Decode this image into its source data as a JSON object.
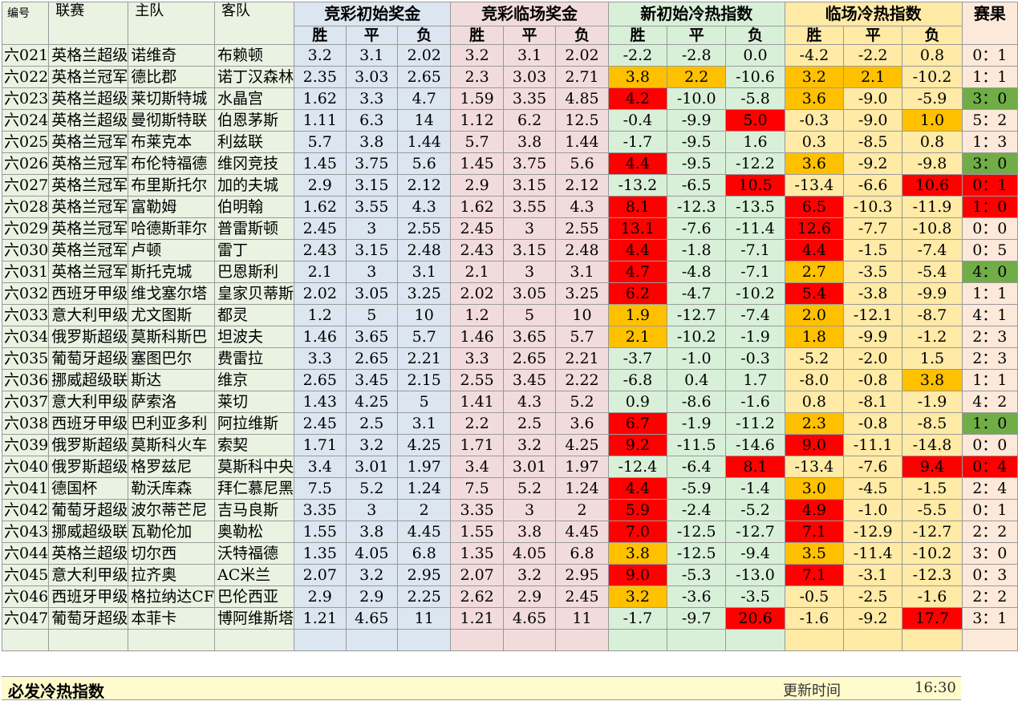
{
  "headers": {
    "id": "编号",
    "league": "联赛",
    "home": "主队",
    "away": "客队",
    "g1": "竞彩初始奖金",
    "g2": "竞彩临场奖金",
    "g3": "新初始冷热指数",
    "g4": "临场冷热指数",
    "result": "赛果",
    "win": "胜",
    "draw": "平",
    "lose": "负"
  },
  "highlight_colors": {
    "red": "#ff0000",
    "orange": "#ffc000",
    "green": "#70ad47"
  },
  "rows": [
    {
      "id": "六021",
      "league": "英格兰超级",
      "home": "诺维奇",
      "away": "布赖顿",
      "o": [
        "3.2",
        "3.1",
        "2.02"
      ],
      "c": [
        "3.2",
        "3.1",
        "2.02"
      ],
      "ni": [
        "-2.2",
        "-2.8",
        "0.0"
      ],
      "li": [
        "-4.2",
        "-2.2",
        "0.8"
      ],
      "result": "0：1",
      "nh": [
        "",
        "",
        ""
      ],
      "lh": [
        "",
        "",
        ""
      ],
      "rh": ""
    },
    {
      "id": "六022",
      "league": "英格兰冠军",
      "home": "德比郡",
      "away": "诺丁汉森林",
      "o": [
        "2.35",
        "3.03",
        "2.65"
      ],
      "c": [
        "2.3",
        "3.03",
        "2.71"
      ],
      "ni": [
        "3.8",
        "2.2",
        "-10.6"
      ],
      "li": [
        "3.2",
        "2.1",
        "-10.2"
      ],
      "result": "1：1",
      "nh": [
        "org",
        "org",
        ""
      ],
      "lh": [
        "org",
        "org",
        ""
      ],
      "rh": ""
    },
    {
      "id": "六023",
      "league": "英格兰超级",
      "home": "莱切斯特城",
      "away": "水晶宫",
      "o": [
        "1.62",
        "3.3",
        "4.7"
      ],
      "c": [
        "1.59",
        "3.35",
        "4.85"
      ],
      "ni": [
        "4.2",
        "-10.0",
        "-5.8"
      ],
      "li": [
        "3.6",
        "-9.0",
        "-5.9"
      ],
      "result": "3：0",
      "nh": [
        "red",
        "",
        ""
      ],
      "lh": [
        "org",
        "",
        ""
      ],
      "rh": "grn"
    },
    {
      "id": "六024",
      "league": "英格兰超级",
      "home": "曼彻斯特联",
      "away": "伯恩茅斯",
      "o": [
        "1.11",
        "6.3",
        "14"
      ],
      "c": [
        "1.12",
        "6.2",
        "12.5"
      ],
      "ni": [
        "-0.4",
        "-9.9",
        "5.0"
      ],
      "li": [
        "-0.3",
        "-9.0",
        "1.0"
      ],
      "result": "5：2",
      "nh": [
        "",
        "",
        "red"
      ],
      "lh": [
        "",
        "",
        "org"
      ],
      "rh": ""
    },
    {
      "id": "六025",
      "league": "英格兰冠军",
      "home": "布莱克本",
      "away": "利兹联",
      "o": [
        "5.7",
        "3.8",
        "1.44"
      ],
      "c": [
        "5.7",
        "3.8",
        "1.44"
      ],
      "ni": [
        "-1.7",
        "-9.5",
        "1.6"
      ],
      "li": [
        "0.3",
        "-8.5",
        "0.8"
      ],
      "result": "1：3",
      "nh": [
        "",
        "",
        ""
      ],
      "lh": [
        "",
        "",
        ""
      ],
      "rh": ""
    },
    {
      "id": "六026",
      "league": "英格兰冠军",
      "home": "布伦特福德",
      "away": "维冈竞技",
      "o": [
        "1.45",
        "3.75",
        "5.6"
      ],
      "c": [
        "1.45",
        "3.75",
        "5.6"
      ],
      "ni": [
        "4.4",
        "-9.5",
        "-12.2"
      ],
      "li": [
        "3.6",
        "-9.2",
        "-9.8"
      ],
      "result": "3：0",
      "nh": [
        "red",
        "",
        ""
      ],
      "lh": [
        "org",
        "",
        ""
      ],
      "rh": "grn"
    },
    {
      "id": "六027",
      "league": "英格兰冠军",
      "home": "布里斯托尔",
      "away": "加的夫城",
      "o": [
        "2.9",
        "3.15",
        "2.12"
      ],
      "c": [
        "2.9",
        "3.15",
        "2.12"
      ],
      "ni": [
        "-13.2",
        "-6.5",
        "10.5"
      ],
      "li": [
        "-13.4",
        "-6.6",
        "10.6"
      ],
      "result": "0：1",
      "nh": [
        "",
        "",
        "red"
      ],
      "lh": [
        "",
        "",
        "red"
      ],
      "rh": "red"
    },
    {
      "id": "六028",
      "league": "英格兰冠军",
      "home": "富勒姆",
      "away": "伯明翰",
      "o": [
        "1.62",
        "3.55",
        "4.3"
      ],
      "c": [
        "1.62",
        "3.55",
        "4.3"
      ],
      "ni": [
        "8.1",
        "-12.3",
        "-13.5"
      ],
      "li": [
        "6.5",
        "-10.3",
        "-11.9"
      ],
      "result": "1：0",
      "nh": [
        "red",
        "",
        ""
      ],
      "lh": [
        "red",
        "",
        ""
      ],
      "rh": "red"
    },
    {
      "id": "六029",
      "league": "英格兰冠军",
      "home": "哈德斯菲尔",
      "away": "普雷斯顿",
      "o": [
        "2.45",
        "3",
        "2.55"
      ],
      "c": [
        "2.45",
        "3",
        "2.55"
      ],
      "ni": [
        "13.1",
        "-7.6",
        "-11.4"
      ],
      "li": [
        "12.6",
        "-7.7",
        "-10.8"
      ],
      "result": "0：0",
      "nh": [
        "red",
        "",
        ""
      ],
      "lh": [
        "red",
        "",
        ""
      ],
      "rh": ""
    },
    {
      "id": "六030",
      "league": "英格兰冠军",
      "home": "卢顿",
      "away": "雷丁",
      "o": [
        "2.43",
        "3.15",
        "2.48"
      ],
      "c": [
        "2.43",
        "3.15",
        "2.48"
      ],
      "ni": [
        "4.4",
        "-1.8",
        "-7.1"
      ],
      "li": [
        "4.4",
        "-1.5",
        "-7.4"
      ],
      "result": "0：5",
      "nh": [
        "red",
        "",
        ""
      ],
      "lh": [
        "red",
        "",
        ""
      ],
      "rh": ""
    },
    {
      "id": "六031",
      "league": "英格兰冠军",
      "home": "斯托克城",
      "away": "巴恩斯利",
      "o": [
        "2.1",
        "3",
        "3.1"
      ],
      "c": [
        "2.1",
        "3",
        "3.1"
      ],
      "ni": [
        "4.7",
        "-4.8",
        "-7.1"
      ],
      "li": [
        "2.7",
        "-3.5",
        "-5.4"
      ],
      "result": "4：0",
      "nh": [
        "red",
        "",
        ""
      ],
      "lh": [
        "org",
        "",
        ""
      ],
      "rh": "grn"
    },
    {
      "id": "六032",
      "league": "西班牙甲级",
      "home": "维戈塞尔塔",
      "away": "皇家贝蒂斯",
      "o": [
        "2.02",
        "3.05",
        "3.25"
      ],
      "c": [
        "2.02",
        "3.05",
        "3.25"
      ],
      "ni": [
        "6.2",
        "-4.7",
        "-10.2"
      ],
      "li": [
        "5.4",
        "-3.8",
        "-9.9"
      ],
      "result": "1：1",
      "nh": [
        "red",
        "",
        ""
      ],
      "lh": [
        "red",
        "",
        ""
      ],
      "rh": ""
    },
    {
      "id": "六033",
      "league": "意大利甲级",
      "home": "尤文图斯",
      "away": "都灵",
      "o": [
        "1.2",
        "5",
        "10"
      ],
      "c": [
        "1.2",
        "5",
        "10"
      ],
      "ni": [
        "1.9",
        "-12.7",
        "-7.4"
      ],
      "li": [
        "2.0",
        "-12.1",
        "-8.7"
      ],
      "result": "4：1",
      "nh": [
        "org",
        "",
        ""
      ],
      "lh": [
        "org",
        "",
        ""
      ],
      "rh": ""
    },
    {
      "id": "六034",
      "league": "俄罗斯超级",
      "home": "莫斯科斯巴",
      "away": "坦波夫",
      "o": [
        "1.46",
        "3.65",
        "5.7"
      ],
      "c": [
        "1.46",
        "3.65",
        "5.7"
      ],
      "ni": [
        "2.1",
        "-10.2",
        "-1.9"
      ],
      "li": [
        "1.8",
        "-9.9",
        "-1.2"
      ],
      "result": "2：3",
      "nh": [
        "org",
        "",
        ""
      ],
      "lh": [
        "org",
        "",
        ""
      ],
      "rh": ""
    },
    {
      "id": "六035",
      "league": "葡萄牙超级",
      "home": "塞图巴尔",
      "away": "费雷拉",
      "o": [
        "3.3",
        "2.65",
        "2.21"
      ],
      "c": [
        "3.3",
        "2.65",
        "2.21"
      ],
      "ni": [
        "-3.7",
        "-1.0",
        "-0.3"
      ],
      "li": [
        "-5.2",
        "-2.0",
        "1.5"
      ],
      "result": "2：3",
      "nh": [
        "",
        "",
        ""
      ],
      "lh": [
        "",
        "",
        ""
      ],
      "rh": ""
    },
    {
      "id": "六036",
      "league": "挪威超级联",
      "home": "斯达",
      "away": "维京",
      "o": [
        "2.65",
        "3.45",
        "2.15"
      ],
      "c": [
        "2.55",
        "3.45",
        "2.22"
      ],
      "ni": [
        "-6.8",
        "0.4",
        "1.7"
      ],
      "li": [
        "-8.0",
        "-0.8",
        "3.8"
      ],
      "result": "1：1",
      "nh": [
        "",
        "",
        ""
      ],
      "lh": [
        "",
        "",
        "org"
      ],
      "rh": ""
    },
    {
      "id": "六037",
      "league": "意大利甲级",
      "home": "萨索洛",
      "away": "莱切",
      "o": [
        "1.43",
        "4.25",
        "5"
      ],
      "c": [
        "1.41",
        "4.3",
        "5.2"
      ],
      "ni": [
        "0.9",
        "-8.6",
        "-1.6"
      ],
      "li": [
        "0.8",
        "-8.1",
        "-1.9"
      ],
      "result": "4：2",
      "nh": [
        "",
        "",
        ""
      ],
      "lh": [
        "",
        "",
        ""
      ],
      "rh": ""
    },
    {
      "id": "六038",
      "league": "西班牙甲级",
      "home": "巴利亚多利",
      "away": "阿拉维斯",
      "o": [
        "2.45",
        "2.5",
        "3.1"
      ],
      "c": [
        "2.2",
        "2.5",
        "3.6"
      ],
      "ni": [
        "6.7",
        "-1.9",
        "-11.2"
      ],
      "li": [
        "2.3",
        "-0.8",
        "-8.5"
      ],
      "result": "1：0",
      "nh": [
        "red",
        "",
        ""
      ],
      "lh": [
        "org",
        "",
        ""
      ],
      "rh": "grn"
    },
    {
      "id": "六039",
      "league": "俄罗斯超级",
      "home": "莫斯科火车",
      "away": "索契",
      "o": [
        "1.71",
        "3.2",
        "4.25"
      ],
      "c": [
        "1.71",
        "3.2",
        "4.25"
      ],
      "ni": [
        "9.2",
        "-11.5",
        "-14.6"
      ],
      "li": [
        "9.0",
        "-11.1",
        "-14.8"
      ],
      "result": "0：0",
      "nh": [
        "red",
        "",
        ""
      ],
      "lh": [
        "red",
        "",
        ""
      ],
      "rh": ""
    },
    {
      "id": "六040",
      "league": "俄罗斯超级",
      "home": "格罗兹尼",
      "away": "莫斯科中央",
      "o": [
        "3.4",
        "3.01",
        "1.97"
      ],
      "c": [
        "3.4",
        "3.01",
        "1.97"
      ],
      "ni": [
        "-12.4",
        "-6.4",
        "8.1"
      ],
      "li": [
        "-13.4",
        "-7.6",
        "9.4"
      ],
      "result": "0：4",
      "nh": [
        "",
        "",
        "red"
      ],
      "lh": [
        "",
        "",
        "red"
      ],
      "rh": "red"
    },
    {
      "id": "六041",
      "league": "德国杯",
      "home": "勒沃库森",
      "away": "拜仁慕尼黑",
      "o": [
        "7.5",
        "5.2",
        "1.24"
      ],
      "c": [
        "7.5",
        "5.2",
        "1.24"
      ],
      "ni": [
        "4.4",
        "-5.9",
        "-1.4"
      ],
      "li": [
        "3.0",
        "-4.5",
        "-1.5"
      ],
      "result": "2：4",
      "nh": [
        "red",
        "",
        ""
      ],
      "lh": [
        "org",
        "",
        ""
      ],
      "rh": ""
    },
    {
      "id": "六042",
      "league": "葡萄牙超级",
      "home": "波尔蒂芒尼",
      "away": "吉马良斯",
      "o": [
        "3.35",
        "3",
        "2"
      ],
      "c": [
        "3.35",
        "3",
        "2"
      ],
      "ni": [
        "5.9",
        "-2.4",
        "-5.2"
      ],
      "li": [
        "4.9",
        "-1.0",
        "-5.5"
      ],
      "result": "0：1",
      "nh": [
        "red",
        "",
        ""
      ],
      "lh": [
        "red",
        "",
        ""
      ],
      "rh": ""
    },
    {
      "id": "六043",
      "league": "挪威超级联",
      "home": "瓦勒伦加",
      "away": "奥勒松",
      "o": [
        "1.55",
        "3.8",
        "4.45"
      ],
      "c": [
        "1.55",
        "3.8",
        "4.45"
      ],
      "ni": [
        "7.0",
        "-12.5",
        "-12.7"
      ],
      "li": [
        "7.1",
        "-12.9",
        "-12.7"
      ],
      "result": "2：2",
      "nh": [
        "red",
        "",
        ""
      ],
      "lh": [
        "red",
        "",
        ""
      ],
      "rh": ""
    },
    {
      "id": "六044",
      "league": "英格兰超级",
      "home": "切尔西",
      "away": "沃特福德",
      "o": [
        "1.35",
        "4.05",
        "6.8"
      ],
      "c": [
        "1.35",
        "4.05",
        "6.8"
      ],
      "ni": [
        "3.8",
        "-12.5",
        "-9.4"
      ],
      "li": [
        "3.5",
        "-11.4",
        "-10.2"
      ],
      "result": "3：0",
      "nh": [
        "org",
        "",
        ""
      ],
      "lh": [
        "org",
        "",
        ""
      ],
      "rh": ""
    },
    {
      "id": "六045",
      "league": "意大利甲级",
      "home": "拉齐奥",
      "away": "AC米兰",
      "o": [
        "2.07",
        "3.2",
        "2.95"
      ],
      "c": [
        "2.07",
        "3.2",
        "2.95"
      ],
      "ni": [
        "9.0",
        "-5.3",
        "-13.0"
      ],
      "li": [
        "7.1",
        "-3.1",
        "-12.3"
      ],
      "result": "0：3",
      "nh": [
        "red",
        "",
        ""
      ],
      "lh": [
        "red",
        "",
        ""
      ],
      "rh": ""
    },
    {
      "id": "六046",
      "league": "西班牙甲级",
      "home": "格拉纳达CF",
      "away": "巴伦西亚",
      "o": [
        "2.9",
        "2.9",
        "2.25"
      ],
      "c": [
        "2.62",
        "2.9",
        "2.45"
      ],
      "ni": [
        "3.2",
        "-3.6",
        "-3.5"
      ],
      "li": [
        "-0.5",
        "-2.5",
        "-1.6"
      ],
      "result": "2：2",
      "nh": [
        "org",
        "",
        ""
      ],
      "lh": [
        "",
        "",
        ""
      ],
      "rh": ""
    },
    {
      "id": "六047",
      "league": "葡萄牙超级",
      "home": "本菲卡",
      "away": "博阿维斯塔",
      "o": [
        "1.21",
        "4.65",
        "11"
      ],
      "c": [
        "1.21",
        "4.65",
        "11"
      ],
      "ni": [
        "-1.7",
        "-9.7",
        "20.6"
      ],
      "li": [
        "-1.6",
        "-9.2",
        "17.7"
      ],
      "result": "3：1",
      "nh": [
        "",
        "",
        "red"
      ],
      "lh": [
        "",
        "",
        "red"
      ],
      "rh": ""
    }
  ],
  "footer": {
    "title": "必发冷热指数",
    "update_label": "更新时间",
    "update_time": "16:30"
  }
}
